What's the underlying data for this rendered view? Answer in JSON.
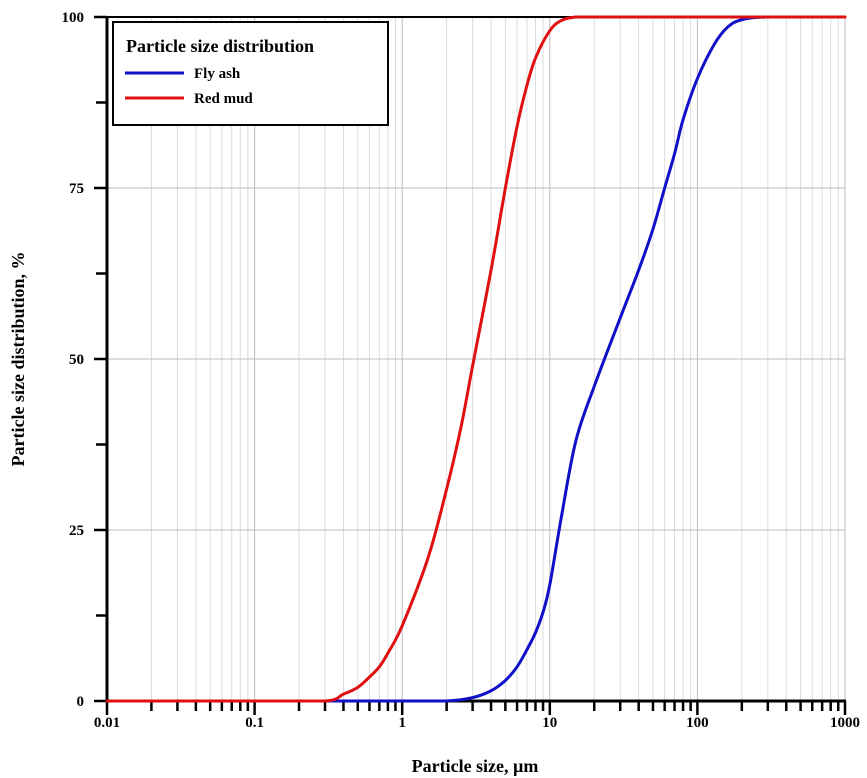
{
  "chart_data": {
    "type": "line",
    "xlabel": "Particle size, µm",
    "ylabel": "Particle size distribution, %",
    "xscale": "log",
    "xlim": [
      0.01,
      1000
    ],
    "ylim": [
      0,
      100
    ],
    "xticks": [
      "0.01",
      "0.1",
      "1",
      "10",
      "100",
      "1000"
    ],
    "yticks": [
      "0",
      "25",
      "50",
      "75",
      "100"
    ],
    "grid": true,
    "legend": {
      "title": "Particle size distribution",
      "position": "top-left"
    },
    "series": [
      {
        "name": "Fly ash",
        "color": "#1010c8",
        "x": [
          0.01,
          0.1,
          1,
          2,
          3,
          4,
          5,
          6,
          7,
          8,
          9,
          10,
          12,
          15,
          20,
          30,
          40,
          50,
          60,
          70,
          80,
          100,
          130,
          160,
          200,
          300,
          1000
        ],
        "y": [
          0,
          0,
          0,
          0,
          0.5,
          1.5,
          3,
          5,
          7.5,
          10,
          13,
          17,
          27,
          38,
          46,
          56,
          63,
          69,
          75,
          80,
          85,
          91,
          96,
          98.5,
          99.6,
          100,
          100
        ]
      },
      {
        "name": "Red mud",
        "color": "#e01010",
        "x": [
          0.01,
          0.1,
          0.3,
          0.4,
          0.5,
          0.6,
          0.7,
          0.8,
          1,
          1.5,
          2,
          2.5,
          3,
          4,
          5,
          6,
          7,
          8,
          10,
          12,
          15,
          20,
          100,
          1000
        ],
        "y": [
          0,
          0,
          0,
          1,
          2,
          3.5,
          5,
          7,
          11,
          21,
          31,
          40,
          49,
          63,
          75,
          84,
          90,
          94,
          98,
          99.5,
          100,
          100,
          100,
          100
        ]
      }
    ]
  }
}
